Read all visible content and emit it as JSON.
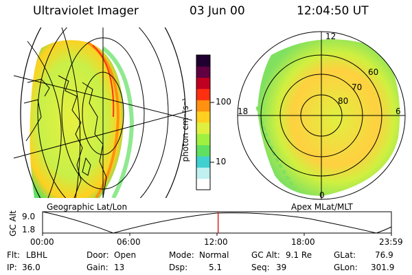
{
  "header": {
    "instrument": "Ultraviolet Imager",
    "date": "03 Jun 00",
    "time": "12:04:50 UT"
  },
  "geo_panel": {
    "caption": "Geographic Lat/Lon"
  },
  "apex_panel": {
    "caption": "Apex MLat/MLT",
    "mlt_labels": [
      "12",
      "18",
      "6",
      "0"
    ],
    "lat_labels": [
      "60",
      "70",
      "80"
    ]
  },
  "colorbar": {
    "unit_label": "photon cm⁻²s⁻¹",
    "ticks": [
      "100",
      "10"
    ],
    "colors": [
      "#ffffff",
      "#c0f0f0",
      "#40d0d0",
      "#60e060",
      "#a0f040",
      "#e0f040",
      "#ffd020",
      "#ff9010",
      "#ff3010",
      "#c00020",
      "#600040",
      "#200030"
    ]
  },
  "altitude_plot": {
    "ylabel": "GC Alt",
    "y_ticks": [
      "9.0",
      "1.8"
    ],
    "x_ticks": [
      "00:00",
      "06:00",
      "12:00",
      "18:00",
      "23:59"
    ],
    "current_time_marker_hours": 12.08,
    "marker_color": "#e02020"
  },
  "info": {
    "row1": [
      {
        "label": "Flt:",
        "value": "LBHL"
      },
      {
        "label": "Door:",
        "value": "Open"
      },
      {
        "label": "Mode:",
        "value": "Normal"
      },
      {
        "label": "GC Alt:",
        "value": "9.1 Re"
      },
      {
        "label": "GLat:",
        "value": "76.9"
      }
    ],
    "row2": [
      {
        "label": "IP:",
        "value": "36.0"
      },
      {
        "label": "Gain:",
        "value": "13"
      },
      {
        "label": "Dsp:",
        "value": "5.1"
      },
      {
        "label": "Seq:",
        "value": "39"
      },
      {
        "label": "GLon:",
        "value": "301.9"
      }
    ]
  }
}
